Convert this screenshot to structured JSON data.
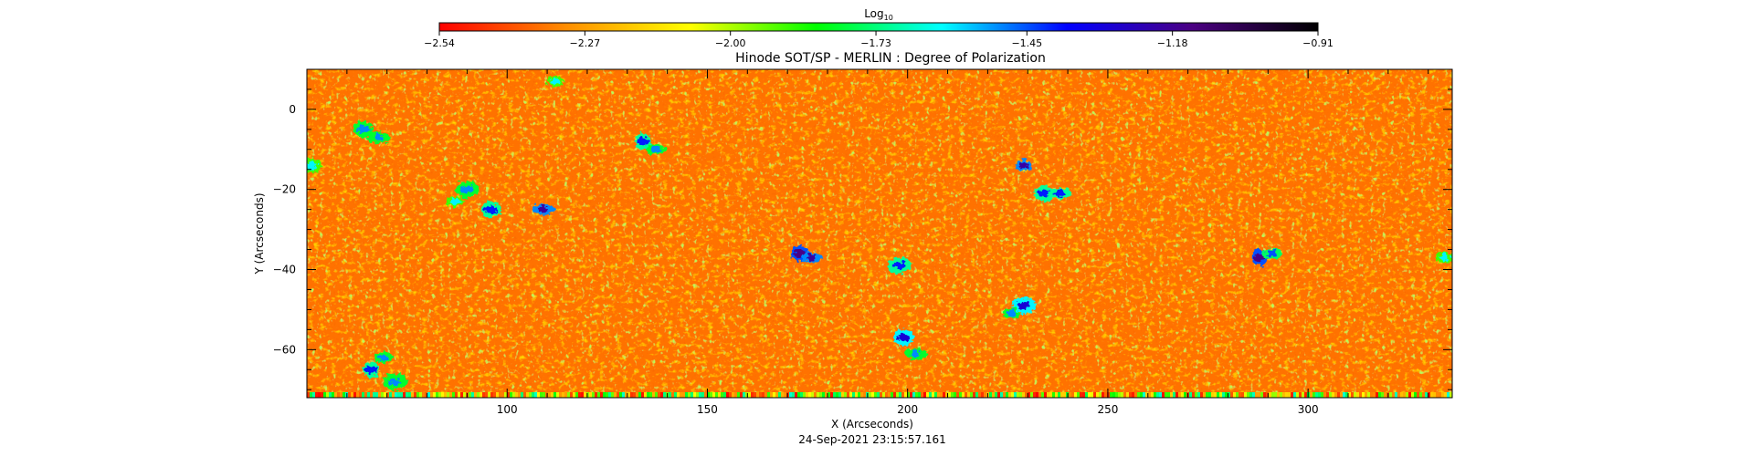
{
  "chart_data": {
    "type": "heatmap",
    "title": "Hinode SOT/SP - MERLIN : Degree of Polarization",
    "xlabel": "X (Arcseconds)",
    "ylabel": "Y (Arcseconds)",
    "xlim": [
      50,
      336
    ],
    "ylim": [
      -72,
      10
    ],
    "x_ticks": [
      100,
      150,
      200,
      250,
      300
    ],
    "x_tick_labels": [
      "100",
      "150",
      "200",
      "250",
      "300"
    ],
    "y_ticks": [
      0,
      -20,
      -40,
      -60
    ],
    "y_tick_labels": [
      "0",
      "−20",
      "−40",
      "−60"
    ],
    "timestamp": "24-Sep-2021 23:15:57.161",
    "colorbar": {
      "label_base": "Log",
      "label_sub": "10",
      "range": [
        -2.54,
        -0.91
      ],
      "tick_values": [
        -2.54,
        -2.27,
        -2.0,
        -1.73,
        -1.45,
        -1.18,
        -0.91
      ],
      "tick_labels": [
        "−2.54",
        "−2.27",
        "−2.00",
        "−1.73",
        "−1.45",
        "−1.18",
        "−0.91"
      ],
      "colors": [
        "#ff0000",
        "#ff8c00",
        "#ffff00",
        "#00ff00",
        "#00ffff",
        "#0000ff",
        "#4b0082",
        "#000000"
      ]
    },
    "background_level": -2.35,
    "strong_polarization_patches": [
      {
        "x": 112,
        "y": 7,
        "value": -1.6
      },
      {
        "x": 64,
        "y": -5,
        "value": -1.5
      },
      {
        "x": 68,
        "y": -7,
        "value": -1.5
      },
      {
        "x": 134,
        "y": -8,
        "value": -1.4
      },
      {
        "x": 137,
        "y": -10,
        "value": -1.5
      },
      {
        "x": 90,
        "y": -20,
        "value": -1.5
      },
      {
        "x": 87,
        "y": -23,
        "value": -1.6
      },
      {
        "x": 96,
        "y": -25,
        "value": -1.4
      },
      {
        "x": 109,
        "y": -25,
        "value": -1.2
      },
      {
        "x": 173,
        "y": -36,
        "value": -1.15
      },
      {
        "x": 176,
        "y": -37,
        "value": -1.2
      },
      {
        "x": 198,
        "y": -39,
        "value": -1.4
      },
      {
        "x": 229,
        "y": -14,
        "value": -1.2
      },
      {
        "x": 234,
        "y": -21,
        "value": -1.4
      },
      {
        "x": 238,
        "y": -21,
        "value": -1.4
      },
      {
        "x": 288,
        "y": -37,
        "value": -1.15
      },
      {
        "x": 291,
        "y": -36,
        "value": -1.45
      },
      {
        "x": 229,
        "y": -49,
        "value": -1.3
      },
      {
        "x": 226,
        "y": -51,
        "value": -1.5
      },
      {
        "x": 199,
        "y": -57,
        "value": -1.3
      },
      {
        "x": 202,
        "y": -61,
        "value": -1.5
      },
      {
        "x": 66,
        "y": -65,
        "value": -1.4
      },
      {
        "x": 69,
        "y": -62,
        "value": -1.5
      },
      {
        "x": 72,
        "y": -68,
        "value": -1.5
      },
      {
        "x": 334,
        "y": -37,
        "value": -1.6
      },
      {
        "x": 51,
        "y": -14,
        "value": -1.6
      }
    ]
  }
}
